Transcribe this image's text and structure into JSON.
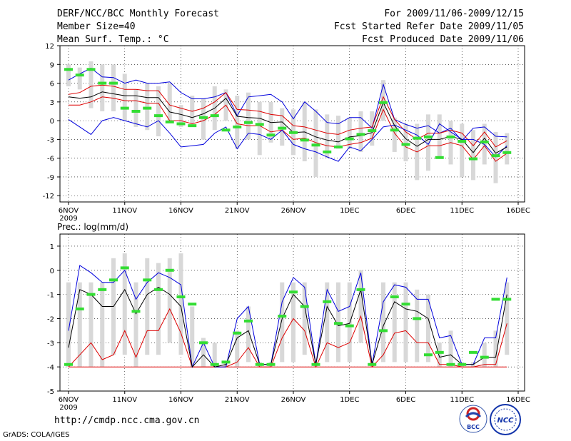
{
  "header": {
    "title": "DERF/NCC/BCC Monthly Forecast",
    "member_size": "Member Size=40",
    "variable": "Mean Surf. Temp.: °C",
    "period": "For 2009/11/06-2009/12/15",
    "started": "Fcst Started Refer Date 2009/11/05",
    "produced": "Fcst Produced Date 2009/11/06"
  },
  "footer": {
    "url": "http://cmdp.ncc.cma.gov.cn",
    "grads": "GrADS: COLA/IGES",
    "logo_bcc": "BCC",
    "logo_ncc": "NCC"
  },
  "colors": {
    "envelope": "#0000dd",
    "ci_band": "#dd0000",
    "mean": "#000000",
    "observed": "#33dd33",
    "spread": "#d8d8d8"
  },
  "chart_data": [
    {
      "type": "line",
      "title": "Mean Surf. Temp.: °C",
      "xlabel": "",
      "ylabel": "°C",
      "ylim": [
        -13,
        12
      ],
      "yticks": [
        12,
        9,
        6,
        3,
        0,
        -3,
        -6,
        -9,
        -12
      ],
      "xtick_labels": [
        "6NOV",
        "11NOV",
        "16NOV",
        "21NOV",
        "26NOV",
        "1DEC",
        "6DEC",
        "11DEC",
        "16DEC"
      ],
      "xtick_days": [
        0,
        5,
        10,
        15,
        20,
        25,
        30,
        35,
        40
      ],
      "year_label": "2009",
      "x_days": [
        0,
        1,
        2,
        3,
        4,
        5,
        6,
        7,
        8,
        9,
        10,
        11,
        12,
        13,
        14,
        15,
        16,
        17,
        18,
        19,
        20,
        21,
        22,
        23,
        24,
        25,
        26,
        27,
        28,
        29,
        30,
        31,
        32,
        33,
        34,
        35,
        36,
        37,
        38,
        39
      ],
      "series": [
        {
          "name": "max",
          "values": [
            0.2,
            -1,
            -2.2,
            0,
            0.5,
            0,
            -0.5,
            -1,
            0,
            -2,
            -4.2,
            -4,
            -3.8,
            -2,
            -1,
            -4.5,
            -2,
            -2.2,
            -3,
            -1.5,
            -3.8,
            -4.5,
            -5,
            -5.8,
            -6.5,
            -4.2,
            -4.8,
            -3,
            -1,
            -0.7,
            -1.5,
            -2.3,
            -3.8,
            -0.5,
            -1.8,
            -3,
            -3,
            -3.8,
            -5.8,
            -4
          ]
        },
        {
          "name": "upper",
          "values": [
            4.2,
            4.5,
            5.5,
            5.7,
            5.5,
            5,
            5,
            4.8,
            4.8,
            2.5,
            2,
            1.5,
            2,
            3,
            4.5,
            1.8,
            1.7,
            1.5,
            1,
            0.8,
            -0.8,
            -1,
            -1.5,
            -2,
            -2.2,
            -1.5,
            -1.2,
            -1,
            3.8,
            0.2,
            -1.8,
            -3,
            -2,
            -2,
            -1.5,
            -2,
            -4,
            -1.8,
            -4.2,
            -3.2
          ]
        },
        {
          "name": "mean",
          "values": [
            3.8,
            3.6,
            3.8,
            4.6,
            4.3,
            4,
            4,
            3.7,
            3.7,
            1.4,
            1,
            0.5,
            1.1,
            2,
            3.6,
            0.7,
            0.5,
            0.4,
            -0.3,
            -0.2,
            -1.9,
            -1.8,
            -2.6,
            -3.1,
            -3.4,
            -2.6,
            -2.4,
            -1.9,
            2.9,
            -0.8,
            -2.9,
            -4.1,
            -3,
            -3,
            -2.5,
            -3,
            -5.1,
            -2.8,
            -5.2,
            -4.2
          ]
        },
        {
          "name": "lower",
          "values": [
            2.5,
            2.5,
            3,
            3.8,
            3.6,
            3.2,
            3.2,
            2.8,
            2.8,
            0,
            0,
            -0.5,
            0,
            1,
            2.5,
            -0.5,
            -0.8,
            -0.8,
            -1.8,
            -1.5,
            -3,
            -2.8,
            -3.5,
            -4,
            -4.2,
            -3.8,
            -3.5,
            -2.8,
            1.8,
            -2,
            -4.2,
            -5,
            -4,
            -4,
            -3.5,
            -4,
            -6.2,
            -4,
            -6.5,
            -5.2
          ]
        },
        {
          "name": "min",
          "values": [
            6.5,
            7.5,
            8.4,
            7,
            6.9,
            6,
            6.5,
            6,
            6,
            6.2,
            4.5,
            3.5,
            3.5,
            3.8,
            4.5,
            0.8,
            3.8,
            4,
            4.2,
            3,
            0.3,
            3,
            1.5,
            -0.3,
            -0.5,
            0.5,
            0.5,
            -1.2,
            5.8,
            0.2,
            -0.6,
            -1.2,
            -0.8,
            -2,
            -1.2,
            -3.2,
            -1.2,
            -1,
            -2.5,
            -2.6
          ]
        },
        {
          "name": "spread_high",
          "values": [
            9,
            8.5,
            9.5,
            9,
            9,
            7.5,
            5,
            6,
            5.5,
            6,
            2.5,
            4,
            3.5,
            5.5,
            5,
            4,
            4.5,
            3,
            3,
            2,
            1.8,
            3,
            1.8,
            1,
            0.8,
            0.5,
            1.5,
            1.5,
            6.5,
            0.5,
            -0.5,
            -0.5,
            1,
            1,
            0,
            -0.5,
            -1.5,
            -0.5,
            -1.8,
            -2
          ]
        },
        {
          "name": "spread_low",
          "values": [
            5.5,
            5,
            2,
            1.5,
            1.5,
            0,
            -1,
            -1.5,
            -2.5,
            0,
            -1,
            -0.5,
            -3,
            -1.5,
            0,
            -4.5,
            -3,
            -5.5,
            -3.5,
            -4,
            -5.5,
            -6.5,
            -9,
            -6,
            -4.5,
            -4.5,
            -5,
            -4,
            0,
            -5,
            -6.5,
            -9.5,
            -8,
            -6,
            -7,
            -9,
            -9.5,
            -7,
            -10,
            -7
          ]
        },
        {
          "name": "observed",
          "values": [
            8.2,
            7.3,
            8.2,
            6,
            6,
            2,
            1.5,
            2,
            0.8,
            -0.2,
            -0.5,
            -0.8,
            0.5,
            0.8,
            -1.5,
            -1,
            -0.3,
            -0.6,
            -2.3,
            -1.2,
            -1.9,
            -3.1,
            -3.9,
            -5,
            -4.2,
            -2.9,
            -2.2,
            -1.6,
            2.9,
            -1.5,
            -3.8,
            -2.8,
            -2.6,
            -5.9,
            -2.6,
            -3.3,
            -6.1,
            -3.4,
            -5.6,
            -5.1
          ]
        }
      ]
    },
    {
      "type": "line",
      "title": "Prec.: log(mm/d)",
      "xlabel": "",
      "ylabel": "log(mm/d)",
      "ylim": [
        -5,
        1.5
      ],
      "yticks": [
        1,
        0,
        -1,
        -2,
        -3,
        -4,
        -5
      ],
      "xtick_labels": [
        "6NOV",
        "11NOV",
        "16NOV",
        "21NOV",
        "26NOV",
        "1DEC",
        "6DEC",
        "11DEC",
        "16DEC"
      ],
      "xtick_days": [
        0,
        5,
        10,
        15,
        20,
        25,
        30,
        35,
        40
      ],
      "year_label": "2009",
      "x_days": [
        0,
        1,
        2,
        3,
        4,
        5,
        6,
        7,
        8,
        9,
        10,
        11,
        12,
        13,
        14,
        15,
        16,
        17,
        18,
        19,
        20,
        21,
        22,
        23,
        24,
        25,
        26,
        27,
        28,
        29,
        30,
        31,
        32,
        33,
        34,
        35,
        36,
        37,
        38,
        39
      ],
      "series": [
        {
          "name": "max",
          "values": [
            -2.5,
            0.2,
            -0.1,
            -0.5,
            -0.5,
            0,
            -1.2,
            -0.5,
            -0.1,
            -0.3,
            -0.6,
            -4,
            -3,
            -4,
            -4,
            -2,
            -1.5,
            -3.9,
            -3.9,
            -1.3,
            -0.3,
            -0.7,
            -3.9,
            -0.8,
            -1.7,
            -1.5,
            -0.1,
            -3.9,
            -1.3,
            -0.6,
            -0.7,
            -1.2,
            -1.2,
            -2.8,
            -2.7,
            -3.9,
            -3.9,
            -2.8,
            -2.8,
            -0.3
          ]
        },
        {
          "name": "mean",
          "values": [
            -3.2,
            -0.8,
            -1,
            -1.5,
            -1.5,
            -0.8,
            -1.8,
            -1,
            -0.7,
            -1,
            -1.5,
            -4,
            -3.5,
            -4,
            -3.9,
            -2.8,
            -2.5,
            -3.9,
            -3.9,
            -2,
            -1,
            -1.5,
            -3.9,
            -1.5,
            -2.3,
            -2.2,
            -0.8,
            -3.9,
            -2.3,
            -1.3,
            -1.6,
            -1.7,
            -2,
            -3.6,
            -3.5,
            -3.9,
            -3.9,
            -3.6,
            -3.6,
            -1
          ]
        },
        {
          "name": "lower",
          "values": [
            -4,
            -3.5,
            -3,
            -3.7,
            -3.5,
            -2.5,
            -3.6,
            -2.5,
            -2.5,
            -1.6,
            -2.6,
            -4,
            -4,
            -4,
            -4,
            -3.8,
            -3.2,
            -4,
            -4,
            -2.8,
            -2,
            -2.5,
            -4,
            -3,
            -3.2,
            -3,
            -1.9,
            -4,
            -3.5,
            -2.6,
            -2.5,
            -3,
            -3,
            -3.9,
            -3.9,
            -4,
            -4,
            -3.9,
            -3.9,
            -2.2
          ]
        },
        {
          "name": "min",
          "values": [
            -4,
            -4,
            -4,
            -4,
            -4,
            -4,
            -4,
            -4,
            -4,
            -4,
            -4,
            -4,
            -4,
            -4,
            -4,
            -4,
            -4,
            -4,
            -4,
            -4,
            -4,
            -4,
            -4,
            -4,
            -4,
            -4,
            -4,
            -4,
            -4,
            -4,
            -4,
            -4,
            -4,
            -4,
            -4,
            -4,
            -4,
            -4,
            -4,
            -4
          ]
        },
        {
          "name": "spread_high",
          "values": [
            -0.5,
            -0.5,
            -0.5,
            -0.5,
            0.5,
            0.7,
            -0.5,
            0.5,
            0.3,
            0.5,
            0.7,
            -1.5,
            -2.8,
            -3,
            -3.8,
            -2.5,
            -1.5,
            -3.8,
            -3.8,
            -0.5,
            -0.5,
            -0.5,
            -3.8,
            -0.5,
            -0.5,
            -0.5,
            0,
            -3.8,
            -0.5,
            -0.5,
            -0.5,
            -0.8,
            -1,
            -3,
            -2.5,
            -3.8,
            -3.8,
            -3,
            -2.5,
            -0.5
          ]
        },
        {
          "name": "spread_low",
          "values": [
            -4,
            -4,
            -4,
            -4,
            -3.5,
            -3.5,
            -4,
            -3.5,
            -3.5,
            -3,
            -3.5,
            -4,
            -4,
            -4,
            -4,
            -4,
            -3.8,
            -4,
            -4,
            -3.8,
            -3.8,
            -3.5,
            -4,
            -3.8,
            -3.8,
            -3.8,
            -3,
            -4,
            -3.8,
            -3.8,
            -3.8,
            -3.8,
            -3.8,
            -4,
            -4,
            -4,
            -4,
            -4,
            -4,
            -3.5
          ]
        },
        {
          "name": "observed",
          "values": [
            -3.9,
            -1.6,
            -1,
            -0.8,
            -0.4,
            0.1,
            -1.7,
            -0.4,
            -0.8,
            0,
            -1.1,
            -1.4,
            -3,
            -3.9,
            -3.8,
            -2.6,
            -2.1,
            -3.9,
            -3.9,
            -1.9,
            -0.9,
            -1.5,
            -3.9,
            -1.3,
            -2.2,
            -2.3,
            -0.8,
            -3.9,
            -2.5,
            -1.1,
            -1.4,
            -2,
            -3.5,
            -3.4,
            -3.9,
            -3.9,
            -3.4,
            -3.6,
            -1.2,
            -1.2
          ]
        }
      ]
    }
  ]
}
